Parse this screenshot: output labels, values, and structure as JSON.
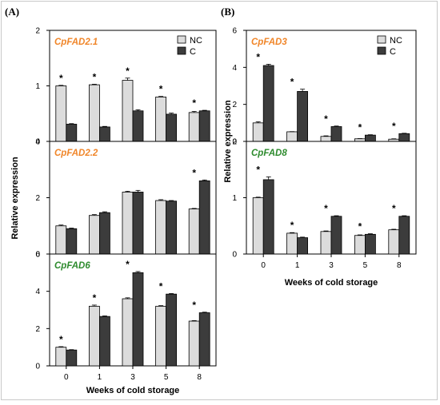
{
  "panel_labels": [
    "(A)",
    "(B)"
  ],
  "legend": [
    "NC",
    "C"
  ],
  "colors": {
    "NC": "#dcdcdc",
    "C": "#3c3c3c",
    "orange_gene": "#f0862a",
    "green_gene": "#2e8b2e"
  },
  "panelA": {
    "ylabel": "Relative expression",
    "xlabel": "Weeks of cold storage"
  },
  "panelB": {
    "ylabel": "Relative expression",
    "xlabel": "Weeks of cold storage"
  },
  "chart_data": [
    {
      "type": "bar",
      "panel": "(A)",
      "title": "CpFAD2.1",
      "title_color": "orange",
      "categories": [
        "0",
        "1",
        "3",
        "5",
        "8"
      ],
      "series": [
        {
          "name": "NC",
          "values": [
            1.0,
            1.02,
            1.1,
            0.8,
            0.52
          ],
          "errors": [
            0.01,
            0.01,
            0.04,
            0.01,
            0.02
          ]
        },
        {
          "name": "C",
          "values": [
            0.31,
            0.26,
            0.55,
            0.49,
            0.55
          ],
          "errors": [
            0.01,
            0.01,
            0.02,
            0.02,
            0.01
          ]
        }
      ],
      "significant": [
        true,
        true,
        true,
        true,
        true
      ],
      "ylim": [
        0,
        2
      ],
      "yticks": [
        0,
        1,
        2
      ],
      "ylabel": "",
      "xlabel": "",
      "legend_position": "top-right",
      "grid": false
    },
    {
      "type": "bar",
      "panel": "(A)",
      "title": "CpFAD2.2",
      "title_color": "orange",
      "categories": [
        "0",
        "1",
        "3",
        "5",
        "8"
      ],
      "series": [
        {
          "name": "NC",
          "values": [
            1.0,
            1.37,
            2.2,
            1.9,
            1.6
          ],
          "errors": [
            0.03,
            0.03,
            0.03,
            0.03,
            0.02
          ]
        },
        {
          "name": "C",
          "values": [
            0.9,
            1.47,
            2.2,
            1.88,
            2.6
          ],
          "errors": [
            0.02,
            0.03,
            0.06,
            0.02,
            0.03
          ]
        }
      ],
      "significant": [
        false,
        false,
        false,
        false,
        true
      ],
      "ylim": [
        0,
        4
      ],
      "yticks": [
        0,
        2,
        4
      ],
      "ylabel": "",
      "xlabel": "",
      "grid": false
    },
    {
      "type": "bar",
      "panel": "(A)",
      "title": "CpFAD6",
      "title_color": "green",
      "categories": [
        "0",
        "1",
        "3",
        "5",
        "8"
      ],
      "series": [
        {
          "name": "NC",
          "values": [
            1.0,
            3.2,
            3.6,
            3.2,
            2.4
          ],
          "errors": [
            0.03,
            0.06,
            0.05,
            0.03,
            0.03
          ]
        },
        {
          "name": "C",
          "values": [
            0.85,
            2.65,
            5.0,
            3.85,
            2.85
          ],
          "errors": [
            0.02,
            0.03,
            0.06,
            0.03,
            0.03
          ]
        }
      ],
      "significant": [
        true,
        true,
        true,
        true,
        true
      ],
      "ylim": [
        0,
        6
      ],
      "yticks": [
        0,
        2,
        4,
        6
      ],
      "ylabel": "",
      "xlabel": "",
      "grid": false
    },
    {
      "type": "bar",
      "panel": "(B)",
      "title": "CpFAD3",
      "title_color": "orange",
      "categories": [
        "0",
        "1",
        "3",
        "5",
        "8"
      ],
      "series": [
        {
          "name": "NC",
          "values": [
            1.0,
            0.52,
            0.27,
            0.14,
            0.12
          ],
          "errors": [
            0.06,
            0.01,
            0.03,
            0.01,
            0.02
          ]
        },
        {
          "name": "C",
          "values": [
            4.1,
            2.7,
            0.8,
            0.34,
            0.42
          ],
          "errors": [
            0.07,
            0.12,
            0.03,
            0.02,
            0.02
          ]
        }
      ],
      "significant": [
        true,
        true,
        true,
        true,
        true
      ],
      "ylim": [
        0,
        6
      ],
      "yticks": [
        0,
        2,
        4,
        6
      ],
      "ylabel": "",
      "xlabel": "",
      "legend_position": "top-right",
      "grid": false
    },
    {
      "type": "bar",
      "panel": "(B)",
      "title": "CpFAD8",
      "title_color": "green",
      "categories": [
        "0",
        "1",
        "3",
        "5",
        "8"
      ],
      "series": [
        {
          "name": "NC",
          "values": [
            1.0,
            0.37,
            0.4,
            0.33,
            0.43
          ],
          "errors": [
            0.01,
            0.01,
            0.01,
            0.01,
            0.01
          ]
        },
        {
          "name": "C",
          "values": [
            1.32,
            0.29,
            0.67,
            0.35,
            0.67
          ],
          "errors": [
            0.05,
            0.01,
            0.01,
            0.01,
            0.01
          ]
        }
      ],
      "significant": [
        true,
        true,
        true,
        true,
        true
      ],
      "ylim": [
        0,
        2
      ],
      "yticks": [
        0,
        1,
        2
      ],
      "ylabel": "",
      "xlabel": "",
      "grid": false
    }
  ]
}
